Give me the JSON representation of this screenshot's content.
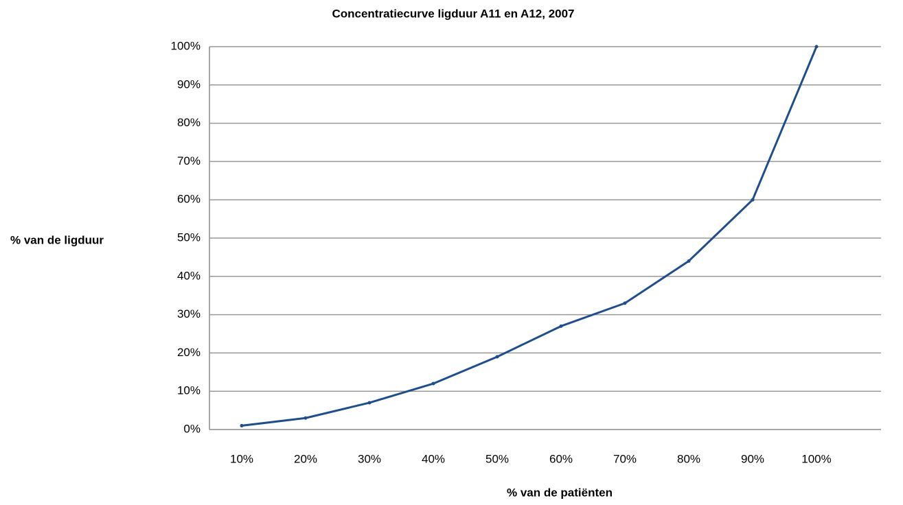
{
  "chart_data": {
    "type": "line",
    "title": "Concentratiecurve ligduur A11 en A12, 2007",
    "x_label": "% van de patiënten",
    "y_label": "% van de ligduur",
    "categories": [
      "10%",
      "20%",
      "30%",
      "40%",
      "50%",
      "60%",
      "70%",
      "80%",
      "90%",
      "100%"
    ],
    "series": [
      {
        "color": "#1f4e8c",
        "values": [
          1,
          3,
          7,
          12,
          19,
          27,
          33,
          44,
          60,
          100
        ]
      }
    ],
    "ylim": [
      0,
      100
    ],
    "yticks": [
      {
        "value": 0,
        "label": "0%"
      },
      {
        "value": 10,
        "label": "10%"
      },
      {
        "value": 20,
        "label": "20%"
      },
      {
        "value": 30,
        "label": "30%"
      },
      {
        "value": 40,
        "label": "40%"
      },
      {
        "value": 50,
        "label": "50%"
      },
      {
        "value": 60,
        "label": "60%"
      },
      {
        "value": 70,
        "label": "70%"
      },
      {
        "value": 80,
        "label": "80%"
      },
      {
        "value": 90,
        "label": "90%"
      },
      {
        "value": 100,
        "label": "100%"
      }
    ],
    "grid": true
  }
}
